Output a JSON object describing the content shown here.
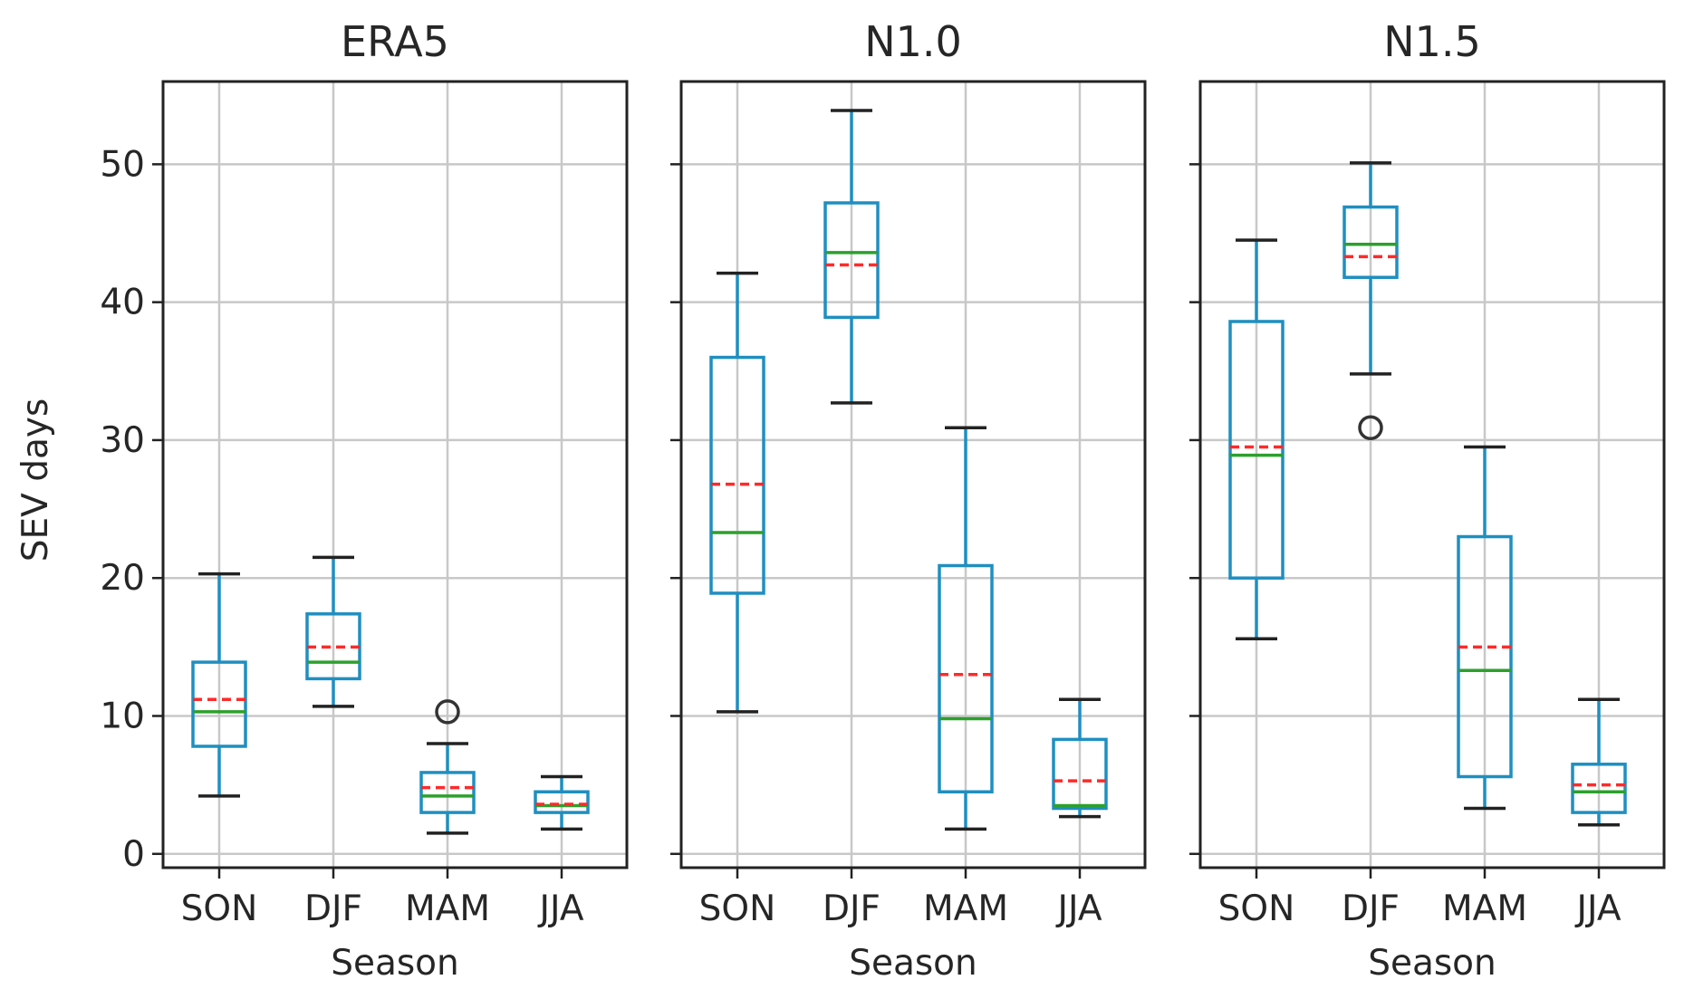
{
  "chart_data": {
    "type": "boxplot",
    "ylabel": "SEV days",
    "xlabel": "Season",
    "ylim": [
      -1,
      56
    ],
    "yticks": [
      0,
      10,
      20,
      30,
      40,
      50
    ],
    "grid": true,
    "sharey": true,
    "categories": [
      "SON",
      "DJF",
      "MAM",
      "JJA"
    ],
    "colors": {
      "box": "#1f8fc0",
      "median": "#2ca02c",
      "mean": "#ff2a2a",
      "outlier": "#333333",
      "frame": "#222222",
      "grid": "#c8c8c8"
    },
    "panels": [
      {
        "title": "ERA5",
        "boxes": [
          {
            "category": "SON",
            "whisker_low": 4.2,
            "q1": 7.8,
            "median": 10.3,
            "mean": 11.2,
            "q3": 13.9,
            "whisker_high": 20.3,
            "outliers": []
          },
          {
            "category": "DJF",
            "whisker_low": 10.7,
            "q1": 12.7,
            "median": 13.9,
            "mean": 15.0,
            "q3": 17.4,
            "whisker_high": 21.5,
            "outliers": []
          },
          {
            "category": "MAM",
            "whisker_low": 1.5,
            "q1": 3.0,
            "median": 4.2,
            "mean": 4.8,
            "q3": 5.9,
            "whisker_high": 8.0,
            "outliers": [
              10.3
            ]
          },
          {
            "category": "JJA",
            "whisker_low": 1.8,
            "q1": 3.0,
            "median": 3.5,
            "mean": 3.6,
            "q3": 4.5,
            "whisker_high": 5.6,
            "outliers": []
          }
        ]
      },
      {
        "title": "N1.0",
        "boxes": [
          {
            "category": "SON",
            "whisker_low": 10.3,
            "q1": 18.9,
            "median": 23.3,
            "mean": 26.8,
            "q3": 36.0,
            "whisker_high": 42.1,
            "outliers": []
          },
          {
            "category": "DJF",
            "whisker_low": 32.7,
            "q1": 38.9,
            "median": 43.6,
            "mean": 42.7,
            "q3": 47.2,
            "whisker_high": 53.9,
            "outliers": []
          },
          {
            "category": "MAM",
            "whisker_low": 1.8,
            "q1": 4.5,
            "median": 9.8,
            "mean": 13.0,
            "q3": 20.9,
            "whisker_high": 30.9,
            "outliers": []
          },
          {
            "category": "JJA",
            "whisker_low": 2.7,
            "q1": 3.3,
            "median": 3.5,
            "mean": 5.3,
            "q3": 8.3,
            "whisker_high": 11.2,
            "outliers": []
          }
        ]
      },
      {
        "title": "N1.5",
        "boxes": [
          {
            "category": "SON",
            "whisker_low": 15.6,
            "q1": 20.0,
            "median": 28.9,
            "mean": 29.5,
            "q3": 38.6,
            "whisker_high": 44.5,
            "outliers": []
          },
          {
            "category": "DJF",
            "whisker_low": 34.8,
            "q1": 41.8,
            "median": 44.2,
            "mean": 43.3,
            "q3": 46.9,
            "whisker_high": 50.1,
            "outliers": [
              30.9
            ]
          },
          {
            "category": "MAM",
            "whisker_low": 3.3,
            "q1": 5.6,
            "median": 13.3,
            "mean": 15.0,
            "q3": 23.0,
            "whisker_high": 29.5,
            "outliers": []
          },
          {
            "category": "JJA",
            "whisker_low": 2.1,
            "q1": 3.0,
            "median": 4.5,
            "mean": 5.0,
            "q3": 6.5,
            "whisker_high": 11.2,
            "outliers": []
          }
        ]
      }
    ]
  }
}
